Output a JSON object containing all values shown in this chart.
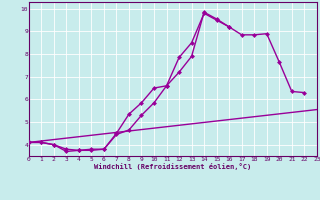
{
  "xlabel": "Windchill (Refroidissement éolien,°C)",
  "background_color": "#c8ecec",
  "line_color": "#990099",
  "grid_color": "#ffffff",
  "axis_color": "#660066",
  "xlim": [
    0,
    23
  ],
  "ylim": [
    3.5,
    10.3
  ],
  "yticks": [
    4,
    5,
    6,
    7,
    8,
    9,
    10
  ],
  "xticks": [
    0,
    1,
    2,
    3,
    4,
    5,
    6,
    7,
    8,
    9,
    10,
    11,
    12,
    13,
    14,
    15,
    16,
    17,
    18,
    19,
    20,
    21,
    22,
    23
  ],
  "line1_x": [
    0,
    1,
    2,
    3,
    4,
    5,
    6,
    7,
    8,
    9,
    10,
    11,
    12,
    13,
    14,
    15,
    16,
    17,
    18,
    19,
    20,
    21,
    22
  ],
  "line1_y": [
    4.1,
    4.1,
    4.0,
    3.8,
    3.75,
    3.8,
    3.8,
    4.5,
    5.35,
    5.85,
    6.5,
    6.6,
    7.85,
    8.5,
    9.8,
    9.5,
    9.2,
    8.85,
    8.85,
    8.9,
    7.65,
    6.35,
    6.3
  ],
  "line2_x": [
    0,
    1,
    2,
    3,
    4,
    5,
    6,
    7,
    8,
    9,
    10,
    11,
    12,
    13,
    14,
    15,
    16
  ],
  "line2_y": [
    4.1,
    4.1,
    4.0,
    3.7,
    3.75,
    3.75,
    3.8,
    4.45,
    4.65,
    5.3,
    5.85,
    6.6,
    7.2,
    7.9,
    9.85,
    9.55,
    9.2
  ],
  "line3_x": [
    0,
    23
  ],
  "line3_y": [
    4.1,
    5.55
  ],
  "marker": "D",
  "marker_size": 2.5,
  "line_width": 1.0
}
